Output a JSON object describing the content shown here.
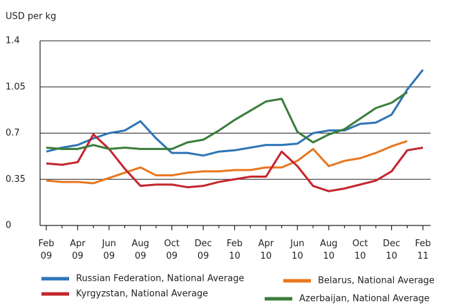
{
  "chart_data": {
    "type": "line",
    "y_axis_label": "USD per kg",
    "categories": [
      "Feb 09",
      null,
      "Apr 09",
      null,
      "Jun 09",
      null,
      "Aug 09",
      null,
      "Oct 09",
      null,
      "Dec 09",
      null,
      "Feb 10",
      null,
      "Apr 10",
      null,
      "Jun 10",
      null,
      "Aug 10",
      null,
      "Oct 10",
      null,
      "Dec 10",
      null,
      "Feb 11"
    ],
    "ylim": [
      0,
      1.4
    ],
    "yticks": [
      0,
      0.35,
      0.7,
      1.05,
      1.4
    ],
    "grid": true,
    "legend": "bottom",
    "series": [
      {
        "name": "Russian Federation, National Average",
        "color": "#2e75b6",
        "values": [
          0.56,
          0.59,
          0.61,
          0.66,
          0.7,
          0.72,
          0.79,
          0.66,
          0.55,
          0.55,
          0.53,
          0.56,
          0.57,
          0.59,
          0.61,
          0.61,
          0.62,
          0.7,
          0.72,
          0.72,
          0.77,
          0.78,
          0.84,
          1.03,
          1.18
        ]
      },
      {
        "name": "Belarus, National Average",
        "color": "#e8771e",
        "values": [
          0.34,
          0.33,
          0.33,
          0.32,
          0.36,
          0.4,
          0.44,
          0.38,
          0.38,
          0.4,
          0.41,
          0.41,
          0.42,
          0.42,
          0.44,
          0.44,
          0.49,
          0.58,
          0.45,
          0.49,
          0.51,
          0.55,
          0.6,
          0.64,
          null
        ]
      },
      {
        "name": "Kyrgyzstan, National Average",
        "color": "#c4262e",
        "values": [
          0.47,
          0.46,
          0.48,
          0.69,
          0.58,
          0.43,
          0.3,
          0.31,
          0.31,
          0.29,
          0.3,
          0.33,
          0.35,
          0.37,
          0.37,
          0.56,
          0.45,
          0.3,
          0.26,
          0.28,
          0.31,
          0.34,
          0.41,
          0.57,
          0.59
        ]
      },
      {
        "name": "Azerbaijan, National Average",
        "color": "#3a7d3a",
        "values": [
          0.59,
          0.58,
          0.58,
          0.61,
          0.58,
          0.59,
          0.58,
          0.58,
          0.58,
          0.63,
          0.65,
          0.72,
          0.8,
          0.87,
          0.94,
          0.96,
          0.71,
          0.63,
          0.69,
          0.73,
          0.81,
          0.89,
          0.93,
          1.01,
          null
        ]
      }
    ]
  }
}
